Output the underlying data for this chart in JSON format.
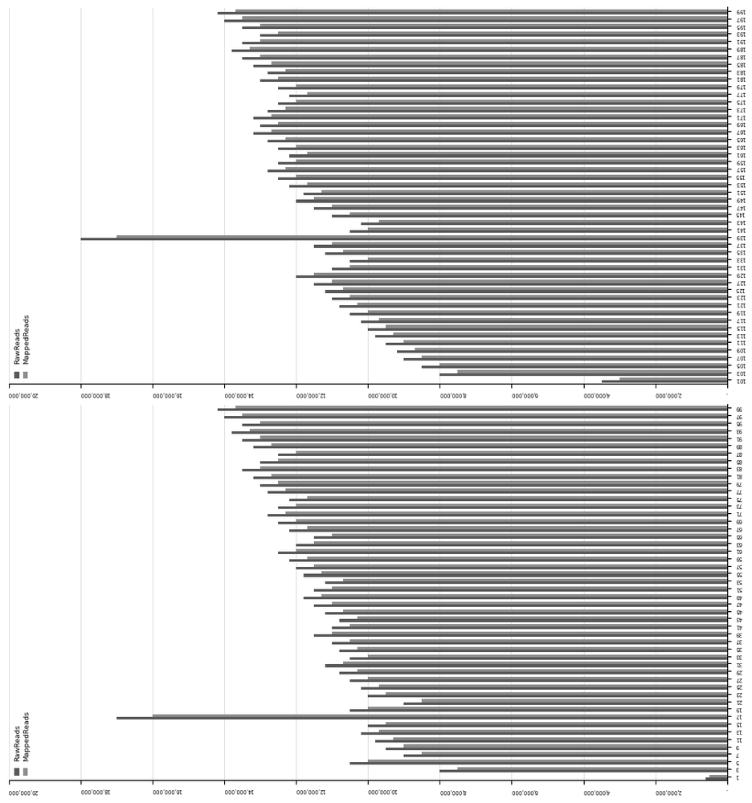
{
  "chart1_labels": [
    1,
    3,
    5,
    7,
    9,
    11,
    13,
    15,
    17,
    19,
    21,
    23,
    25,
    27,
    29,
    31,
    33,
    35,
    37,
    39,
    41,
    43,
    45,
    47,
    49,
    51,
    53,
    55,
    57,
    59,
    61,
    63,
    65,
    67,
    69,
    71,
    73,
    75,
    77,
    79,
    81,
    83,
    85,
    87,
    89,
    91,
    93,
    95,
    97,
    99
  ],
  "chart2_labels": [
    101,
    103,
    105,
    107,
    109,
    111,
    113,
    115,
    117,
    119,
    121,
    123,
    125,
    127,
    129,
    131,
    133,
    135,
    137,
    139,
    141,
    143,
    145,
    147,
    149,
    151,
    153,
    155,
    157,
    159,
    161,
    163,
    165,
    167,
    169,
    171,
    173,
    175,
    177,
    179,
    181,
    183,
    185,
    187,
    189,
    191,
    193,
    195,
    197,
    199
  ],
  "raw_reads_1": [
    600000,
    8000000,
    10500000,
    9000000,
    9500000,
    9800000,
    10200000,
    10000000,
    17000000,
    10500000,
    9000000,
    10000000,
    10200000,
    10500000,
    10800000,
    11200000,
    10500000,
    10800000,
    11000000,
    11500000,
    11000000,
    10800000,
    11200000,
    11500000,
    11800000,
    11500000,
    11200000,
    11800000,
    12000000,
    12200000,
    12500000,
    12000000,
    11500000,
    12200000,
    12500000,
    12800000,
    12500000,
    12200000,
    12800000,
    13000000,
    13200000,
    13500000,
    13000000,
    12500000,
    13200000,
    13500000,
    13800000,
    13500000,
    14000000,
    14200000
  ],
  "mapped_reads_1": [
    500000,
    7500000,
    10000000,
    8500000,
    9000000,
    9300000,
    9700000,
    9500000,
    16000000,
    10000000,
    8500000,
    9500000,
    9700000,
    10000000,
    10300000,
    10700000,
    10000000,
    10300000,
    10500000,
    11000000,
    10500000,
    10300000,
    10700000,
    11000000,
    11300000,
    11000000,
    10700000,
    11300000,
    11500000,
    11700000,
    12000000,
    11500000,
    11000000,
    11700000,
    12000000,
    12300000,
    12000000,
    11700000,
    12300000,
    12500000,
    12700000,
    13000000,
    12500000,
    12000000,
    12700000,
    13000000,
    13300000,
    13000000,
    13500000,
    13700000
  ],
  "raw_reads_2": [
    3500000,
    8000000,
    8500000,
    9000000,
    9200000,
    9500000,
    9800000,
    10000000,
    10200000,
    10500000,
    10800000,
    11000000,
    11200000,
    11500000,
    12000000,
    11000000,
    10500000,
    11200000,
    11500000,
    18000000,
    10500000,
    10200000,
    11000000,
    11500000,
    12000000,
    11800000,
    12200000,
    12500000,
    12800000,
    12500000,
    12200000,
    12500000,
    12800000,
    13200000,
    13000000,
    13200000,
    12800000,
    12500000,
    12200000,
    12500000,
    13000000,
    12800000,
    13200000,
    13500000,
    13800000,
    13500000,
    13000000,
    13500000,
    14000000,
    14200000
  ],
  "mapped_reads_2": [
    3000000,
    7500000,
    8000000,
    8500000,
    8700000,
    9000000,
    9300000,
    9500000,
    9700000,
    10000000,
    10300000,
    10500000,
    10700000,
    11000000,
    11500000,
    10500000,
    10000000,
    10700000,
    11000000,
    17000000,
    10000000,
    9700000,
    10500000,
    11000000,
    11500000,
    11300000,
    11700000,
    12000000,
    12300000,
    12000000,
    11700000,
    12000000,
    12300000,
    12700000,
    12500000,
    12700000,
    12300000,
    12000000,
    11700000,
    12000000,
    12500000,
    12300000,
    12700000,
    13000000,
    13300000,
    13000000,
    12500000,
    13000000,
    13500000,
    13700000
  ],
  "raw_color": "#595959",
  "mapped_color": "#8c8c8c",
  "bar_width": 0.35,
  "ylim": [
    0,
    20000000
  ],
  "yticks": [
    0,
    2000000,
    4000000,
    6000000,
    8000000,
    10000000,
    12000000,
    14000000,
    16000000,
    18000000,
    20000000
  ],
  "tick_fontsize": 5,
  "legend_fontsize": 6
}
